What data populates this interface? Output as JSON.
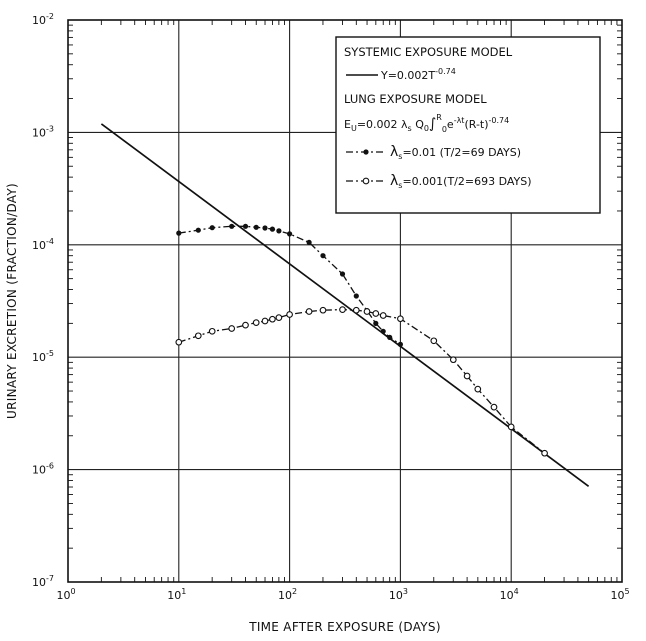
{
  "chart_data": {
    "type": "line",
    "xlabel": "TIME AFTER EXPOSURE  (DAYS)",
    "ylabel": "URINARY EXCRETION (FRACTION/DAY)",
    "x_scale": "log",
    "y_scale": "log",
    "xlim": [
      1,
      100000
    ],
    "ylim": [
      1e-07,
      0.01
    ],
    "grid": true,
    "x_ticks": [
      {
        "value": 1,
        "base": "10",
        "exp": "0"
      },
      {
        "value": 10,
        "base": "10",
        "exp": "1"
      },
      {
        "value": 100,
        "base": "10",
        "exp": "2"
      },
      {
        "value": 1000,
        "base": "10",
        "exp": "3"
      },
      {
        "value": 10000,
        "base": "10",
        "exp": "4"
      },
      {
        "value": 100000,
        "base": "10",
        "exp": "5"
      }
    ],
    "y_ticks": [
      {
        "value": 1e-07,
        "base": "10",
        "exp": "-7"
      },
      {
        "value": 1e-06,
        "base": "10",
        "exp": "-6"
      },
      {
        "value": 1e-05,
        "base": "10",
        "exp": "-5"
      },
      {
        "value": 0.0001,
        "base": "10",
        "exp": "-4"
      },
      {
        "value": 0.001,
        "base": "10",
        "exp": "-3"
      },
      {
        "value": 0.01,
        "base": "10",
        "exp": "-2"
      }
    ],
    "legend": {
      "placement": "top-right",
      "systemic_header": "SYSTEMIC EXPOSURE MODEL",
      "systemic_eq": "Y=0.002T",
      "systemic_exp": "-0.74",
      "lung_header": "LUNG EXPOSURE MODEL",
      "lung_eq": "E",
      "lung_eq_sub": "U",
      "lung_eq_rest": "=0.002 λ",
      "lung_eq_lsub": "s",
      "lung_eq_q": " Q",
      "lung_eq_qsub": "0",
      "lung_eq_int": "∫",
      "lung_eq_int_sup": "R",
      "lung_eq_int_sub": "0",
      "lung_eq_tail": "e",
      "lung_eq_tail_sup": "-λt",
      "lung_eq_tail2": "(R-t)",
      "lung_eq_tail2_sup": "-0.74",
      "series1_lambda": "λ",
      "series1_sub": "s",
      "series1_text": "=0.01 (T/2=69 DAYS)",
      "series2_lambda": "λ",
      "series2_sub": "s",
      "series2_text": "=0.001(T/2=693 DAYS)"
    },
    "series": [
      {
        "name": "systemic",
        "style": "solid",
        "marker": "none",
        "x": [
          2,
          50000
        ],
        "y": [
          0.00119,
          7.1e-07
        ]
      },
      {
        "name": "lambda_0.01",
        "style": "dash-dot",
        "marker": "filled-circle",
        "x": [
          10,
          15,
          20,
          30,
          40,
          50,
          60,
          70,
          80,
          100,
          150,
          200,
          300,
          400,
          500,
          600,
          700,
          800,
          1000
        ],
        "y": [
          0.000127,
          0.000135,
          0.000142,
          0.000146,
          0.000146,
          0.000143,
          0.000141,
          0.000138,
          0.000133,
          0.000125,
          0.000105,
          8e-05,
          5.5e-05,
          3.5e-05,
          2.6e-05,
          2e-05,
          1.7e-05,
          1.5e-05,
          1.3e-05
        ]
      },
      {
        "name": "lambda_0.001",
        "style": "dash-dot",
        "marker": "open-circle",
        "x": [
          10,
          15,
          20,
          30,
          40,
          50,
          60,
          70,
          80,
          100,
          150,
          200,
          300,
          400,
          500,
          600,
          700,
          1000,
          2000,
          3000,
          4000,
          5000,
          7000,
          10000,
          20000
        ],
        "y": [
          1.36e-05,
          1.55e-05,
          1.7e-05,
          1.8e-05,
          1.93e-05,
          2.03e-05,
          2.1e-05,
          2.18e-05,
          2.25e-05,
          2.4e-05,
          2.55e-05,
          2.62e-05,
          2.65e-05,
          2.62e-05,
          2.55e-05,
          2.45e-05,
          2.35e-05,
          2.2e-05,
          1.4e-05,
          9.5e-06,
          6.8e-06,
          5.2e-06,
          3.6e-06,
          2.4e-06,
          1.4e-06
        ]
      }
    ]
  }
}
